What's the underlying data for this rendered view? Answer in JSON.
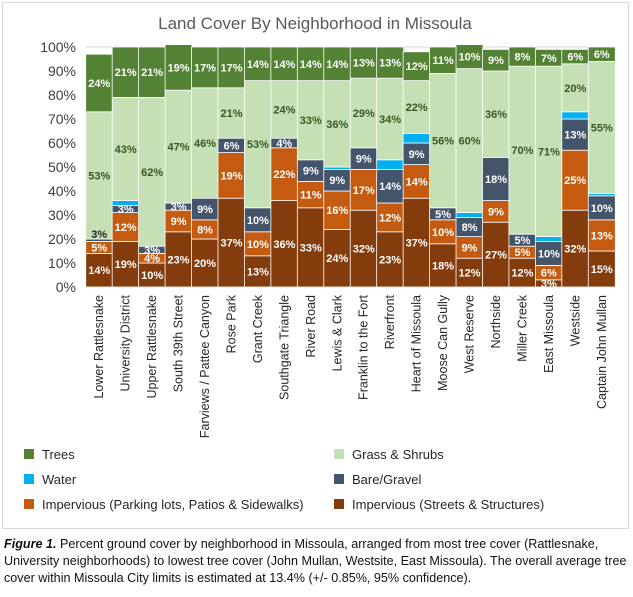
{
  "chart_data": {
    "type": "bar",
    "stacked": true,
    "title": "Land Cover By Neighborhood in Missoula",
    "ylim": [
      0,
      100
    ],
    "y_ticks": [
      "0%",
      "10%",
      "20%",
      "30%",
      "40%",
      "50%",
      "60%",
      "70%",
      "80%",
      "90%",
      "100%"
    ],
    "grid": true,
    "legend_position": "bottom",
    "categories": [
      "Lower Rattlesnake",
      "University District",
      "Upper Rattlesnake",
      "South 39th Street",
      "Farviews / Pattee Canyon",
      "Rose Park",
      "Grant Creek",
      "Southgate Triangle",
      "River Road",
      "Lewis & Clark",
      "Franklin to the Fort",
      "Riverfront",
      "Heart of Missoula",
      "Moose Can Gully",
      "West Reserve",
      "Northside",
      "Miller Creek",
      "East Missoula",
      "Westside",
      "Captain John Mullan"
    ],
    "series": [
      {
        "name": "Impervious (Streets & Structures)",
        "color": "#843c0c",
        "values": [
          14,
          19,
          10,
          23,
          20,
          37,
          13,
          36,
          33,
          24,
          32,
          23,
          37,
          18,
          12,
          27,
          12,
          3,
          32,
          15
        ],
        "labels": [
          "14%",
          "19%",
          "10%",
          "23%",
          "20%",
          "37%",
          "13%",
          "36%",
          "33%",
          "24%",
          "32%",
          "23%",
          "37%",
          "18%",
          "12%",
          "27%",
          "12%",
          "3%",
          "32%",
          "15%"
        ]
      },
      {
        "name": "Impervious (Parking lots, Patios & Sidewalks)",
        "color": "#c55a11",
        "values": [
          5,
          12,
          4,
          9,
          8,
          19,
          10,
          22,
          11,
          16,
          17,
          12,
          14,
          10,
          9,
          9,
          5,
          6,
          25,
          13
        ],
        "labels": [
          "5%",
          "12%",
          "4%",
          "9%",
          "8%",
          "19%",
          "10%",
          "22%",
          "11%",
          "16%",
          "17%",
          "12%",
          "14%",
          "10%",
          "9%",
          "9%",
          "5%",
          "6%",
          "25%",
          "13%"
        ]
      },
      {
        "name": "Bare/Gravel",
        "color": "#44546a",
        "values": [
          1,
          3,
          3,
          3,
          9,
          6,
          10,
          4,
          9,
          9,
          9,
          14,
          9,
          5,
          8,
          18,
          5,
          10,
          13,
          10
        ],
        "labels": [
          "",
          "3%",
          "3%",
          "3%",
          "9%",
          "6%",
          "10%",
          "4%",
          "9%",
          "9%",
          "9%",
          "14%",
          "9%",
          "5%",
          "8%",
          "18%",
          "5%",
          "10%",
          "13%",
          "10%"
        ]
      },
      {
        "name": "Water",
        "color": "#00b0f0",
        "values": [
          0,
          2,
          0,
          0,
          0,
          0,
          0,
          0,
          0,
          1,
          0,
          4,
          4,
          0,
          2,
          0,
          0,
          2,
          3,
          1
        ],
        "labels": [
          "",
          "",
          "",
          "",
          "",
          "",
          "",
          "",
          "",
          "",
          "",
          "",
          "",
          "",
          "",
          "",
          "",
          "",
          "",
          ""
        ]
      },
      {
        "name": "Grass & Shrubs",
        "color": "#c5e0b4",
        "values": [
          53,
          43,
          62,
          47,
          46,
          21,
          53,
          24,
          33,
          36,
          29,
          34,
          22,
          56,
          60,
          36,
          70,
          71,
          20,
          55
        ],
        "labels": [
          "53%",
          "43%",
          "62%",
          "47%",
          "46%",
          "21%",
          "53%",
          "24%",
          "33%",
          "36%",
          "29%",
          "34%",
          "22%",
          "56%",
          "60%",
          "36%",
          "70%",
          "71%",
          "20%",
          "55%"
        ]
      },
      {
        "name": "Trees",
        "color": "#548235",
        "values": [
          24,
          21,
          21,
          19,
          17,
          17,
          14,
          14,
          14,
          14,
          13,
          13,
          12,
          11,
          10,
          9,
          8,
          7,
          6,
          6
        ],
        "labels": [
          "24%",
          "21%",
          "21%",
          "19%",
          "17%",
          "17%",
          "14%",
          "14%",
          "14%",
          "14%",
          "13%",
          "13%",
          "12%",
          "11%",
          "10%",
          "9%",
          "8%",
          "7%",
          "6%",
          "6%"
        ]
      }
    ],
    "extra_labels": [
      {
        "category": "Lower Rattlesnake",
        "text": "3%"
      }
    ],
    "legend": [
      "Trees",
      "Grass & Shrubs",
      "Water",
      "Bare/Gravel",
      "Impervious (Parking lots, Patios & Sidewalks)",
      "Impervious (Streets & Structures)"
    ]
  },
  "caption": {
    "label": "Figure 1.",
    "text": "  Percent ground cover by neighborhood in Missoula, arranged from most tree cover (Rattlesnake, University neighborhoods) to lowest tree cover (John Mullan, Westsite, East Missoula).  The overall average tree cover within Missoula City limits is estimated at 13.4% (+/- 0.85%, 95% confidence)."
  }
}
